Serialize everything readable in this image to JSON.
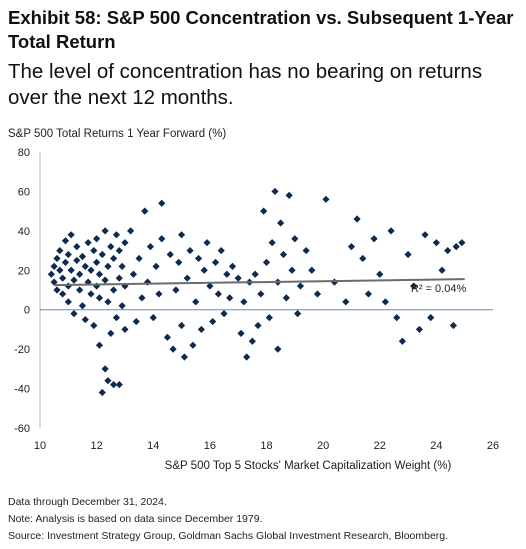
{
  "header": {
    "title": "Exhibit 58: S&P 500 Concentration vs. Subsequent 1-Year Total Return",
    "subtitle": "The level of concentration has no bearing on returns over the next 12 months."
  },
  "footer": {
    "line1": "Data through December 31, 2024.",
    "line2": "Note: Analysis is based on data since December 1979.",
    "line3": "Source: Investment Strategy Group, Goldman Sachs Global Investment Research, Bloomberg."
  },
  "chart_data": {
    "type": "scatter",
    "title": "Exhibit 58: S&P 500 Concentration vs. Subsequent 1-Year Total Return",
    "xlabel": "S&P 500 Top 5 Stocks' Market Capitalization Weight (%)",
    "ylabel": "S&P 500 Total Returns 1 Year Forward (%)",
    "xlim": [
      10,
      26
    ],
    "ylim": [
      -60,
      80
    ],
    "xticks": [
      10,
      12,
      14,
      16,
      18,
      20,
      22,
      24,
      26
    ],
    "yticks": [
      -60,
      -40,
      -20,
      0,
      20,
      40,
      60,
      80
    ],
    "grid": false,
    "marker_color": "#0d2a4f",
    "trendline": {
      "x": [
        10.5,
        25
      ],
      "y": [
        12.5,
        15.5
      ],
      "color": "#6b6b6b"
    },
    "annotation": {
      "text": "R² = 0.04%",
      "x": 23.1,
      "y": 11
    },
    "points": [
      [
        10.4,
        18
      ],
      [
        10.5,
        22
      ],
      [
        10.5,
        14
      ],
      [
        10.6,
        26
      ],
      [
        10.6,
        10
      ],
      [
        10.7,
        20
      ],
      [
        10.7,
        30
      ],
      [
        10.8,
        16
      ],
      [
        10.8,
        8
      ],
      [
        10.9,
        24
      ],
      [
        10.9,
        35
      ],
      [
        11.0,
        12
      ],
      [
        11.0,
        28
      ],
      [
        11.0,
        4
      ],
      [
        11.1,
        20
      ],
      [
        11.1,
        38
      ],
      [
        11.2,
        15
      ],
      [
        11.2,
        -2
      ],
      [
        11.3,
        25
      ],
      [
        11.3,
        32
      ],
      [
        11.4,
        10
      ],
      [
        11.4,
        18
      ],
      [
        11.5,
        2
      ],
      [
        11.5,
        27
      ],
      [
        11.6,
        22
      ],
      [
        11.6,
        -5
      ],
      [
        11.7,
        14
      ],
      [
        11.7,
        34
      ],
      [
        11.8,
        8
      ],
      [
        11.8,
        20
      ],
      [
        11.9,
        30
      ],
      [
        11.9,
        -8
      ],
      [
        12.0,
        12
      ],
      [
        12.0,
        24
      ],
      [
        12.0,
        36
      ],
      [
        12.1,
        -18
      ],
      [
        12.1,
        6
      ],
      [
        12.1,
        18
      ],
      [
        12.2,
        28
      ],
      [
        12.2,
        -42
      ],
      [
        12.3,
        -30
      ],
      [
        12.3,
        15
      ],
      [
        12.3,
        40
      ],
      [
        12.4,
        -36
      ],
      [
        12.4,
        22
      ],
      [
        12.4,
        4
      ],
      [
        12.5,
        32
      ],
      [
        12.5,
        -12
      ],
      [
        12.6,
        -38
      ],
      [
        12.6,
        10
      ],
      [
        12.6,
        26
      ],
      [
        12.7,
        -4
      ],
      [
        12.7,
        38
      ],
      [
        12.8,
        -38
      ],
      [
        12.8,
        16
      ],
      [
        12.8,
        30
      ],
      [
        12.9,
        2
      ],
      [
        12.9,
        22
      ],
      [
        13.0,
        -10
      ],
      [
        13.0,
        34
      ],
      [
        13.0,
        12
      ],
      [
        13.2,
        40
      ],
      [
        13.3,
        18
      ],
      [
        13.4,
        -6
      ],
      [
        13.5,
        26
      ],
      [
        13.6,
        6
      ],
      [
        13.7,
        50
      ],
      [
        13.8,
        14
      ],
      [
        13.9,
        32
      ],
      [
        14.0,
        -4
      ],
      [
        14.1,
        22
      ],
      [
        14.2,
        8
      ],
      [
        14.3,
        54
      ],
      [
        14.3,
        36
      ],
      [
        14.5,
        -14
      ],
      [
        14.6,
        28
      ],
      [
        14.7,
        -20
      ],
      [
        14.8,
        10
      ],
      [
        14.9,
        24
      ],
      [
        15.0,
        -8
      ],
      [
        15.0,
        38
      ],
      [
        15.1,
        -24
      ],
      [
        15.2,
        16
      ],
      [
        15.3,
        30
      ],
      [
        15.4,
        -18
      ],
      [
        15.5,
        4
      ],
      [
        15.6,
        26
      ],
      [
        15.7,
        -10
      ],
      [
        15.8,
        20
      ],
      [
        15.9,
        34
      ],
      [
        16.0,
        12
      ],
      [
        16.1,
        -6
      ],
      [
        16.2,
        24
      ],
      [
        16.3,
        8
      ],
      [
        16.4,
        30
      ],
      [
        16.5,
        -2
      ],
      [
        16.6,
        18
      ],
      [
        16.7,
        6
      ],
      [
        16.8,
        22
      ],
      [
        17.0,
        16
      ],
      [
        17.1,
        -12
      ],
      [
        17.2,
        4
      ],
      [
        17.3,
        -24
      ],
      [
        17.4,
        14
      ],
      [
        17.5,
        -16
      ],
      [
        17.6,
        18
      ],
      [
        17.7,
        -8
      ],
      [
        17.8,
        8
      ],
      [
        17.9,
        50
      ],
      [
        18.0,
        24
      ],
      [
        18.1,
        -4
      ],
      [
        18.2,
        34
      ],
      [
        18.3,
        60
      ],
      [
        18.4,
        14
      ],
      [
        18.4,
        -20
      ],
      [
        18.5,
        44
      ],
      [
        18.6,
        28
      ],
      [
        18.7,
        6
      ],
      [
        18.8,
        58
      ],
      [
        18.9,
        20
      ],
      [
        19.0,
        36
      ],
      [
        19.1,
        -2
      ],
      [
        19.2,
        12
      ],
      [
        19.4,
        30
      ],
      [
        19.6,
        20
      ],
      [
        19.8,
        8
      ],
      [
        20.1,
        56
      ],
      [
        20.4,
        14
      ],
      [
        20.8,
        4
      ],
      [
        21.0,
        32
      ],
      [
        21.2,
        46
      ],
      [
        21.4,
        26
      ],
      [
        21.6,
        8
      ],
      [
        21.8,
        36
      ],
      [
        22.0,
        18
      ],
      [
        22.2,
        4
      ],
      [
        22.4,
        40
      ],
      [
        22.6,
        -4
      ],
      [
        22.8,
        -16
      ],
      [
        23.0,
        28
      ],
      [
        23.2,
        12
      ],
      [
        23.4,
        -10
      ],
      [
        23.6,
        38
      ],
      [
        23.8,
        -4
      ],
      [
        24.0,
        34
      ],
      [
        24.2,
        20
      ],
      [
        24.4,
        30
      ],
      [
        24.6,
        -8
      ],
      [
        24.7,
        32
      ],
      [
        24.9,
        34
      ]
    ]
  }
}
